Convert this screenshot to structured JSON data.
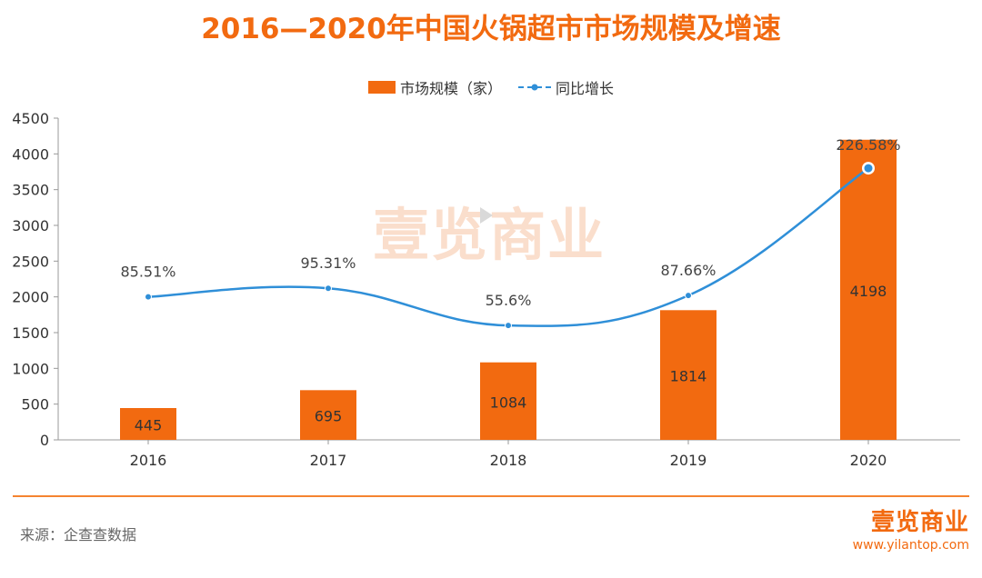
{
  "title": "2016—2020年中国火锅超市市场规模及增速",
  "watermark": "壹览商业",
  "colors": {
    "bar": "#f26a10",
    "line": "#2f8fd8",
    "title": "#f26a10"
  },
  "legend": {
    "bar_label": "市场规模（家）",
    "line_label": "同比增长"
  },
  "chart_data": {
    "type": "bar",
    "categories": [
      "2016",
      "2017",
      "2018",
      "2019",
      "2020"
    ],
    "series": [
      {
        "name": "市场规模（家）",
        "type": "bar",
        "values": [
          445,
          695,
          1084,
          1814,
          4198
        ],
        "labels": [
          "445",
          "695",
          "1084",
          "1814",
          "4198"
        ]
      },
      {
        "name": "同比增长",
        "type": "line",
        "values": [
          85.51,
          95.31,
          55.6,
          87.66,
          226.58
        ],
        "labels": [
          "85.51%",
          "95.31%",
          "55.6%",
          "87.66%",
          "226.58%"
        ]
      }
    ],
    "ylim": [
      0,
      4500
    ],
    "yticks": [
      0,
      500,
      1000,
      1500,
      2000,
      2500,
      3000,
      3500,
      4000,
      4500
    ],
    "line_point_y_left_axis": [
      2000,
      2120,
      1600,
      2020,
      3800
    ]
  },
  "footer": {
    "source": "来源：企查查数据",
    "brand_logo": "壹览商业",
    "brand_url": "www.yilantop.com"
  }
}
